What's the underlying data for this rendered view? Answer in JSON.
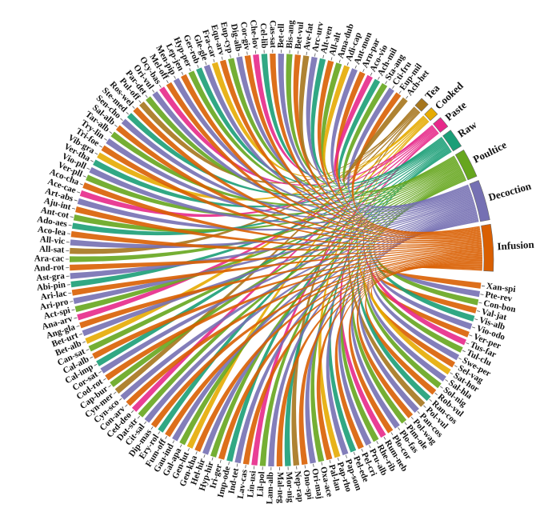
{
  "chart_data": {
    "type": "chord",
    "methods": [
      {
        "name": "Infusion",
        "color": "#d95f02"
      },
      {
        "name": "Decoction",
        "color": "#7570b3"
      },
      {
        "name": "Poultice",
        "color": "#66a61e"
      },
      {
        "name": "Raw",
        "color": "#1b9e77"
      },
      {
        "name": "Paste",
        "color": "#e7298a"
      },
      {
        "name": "Cooked",
        "color": "#e6ab02"
      },
      {
        "name": "Tea",
        "color": "#a6761d"
      }
    ],
    "species": [
      "Xan-spi",
      "Pte-rev",
      "Con-bon",
      "Val-jat",
      "Vis-alb",
      "Vio-odo",
      "Ver-per",
      "Tus-far",
      "Tul-clu",
      "Swe-per",
      "Sel-vag",
      "Sat-hor",
      "Sal-hla",
      "Sol-nig",
      "Rob-vul",
      "Ran-cos",
      "Pol-vul",
      "Pan-cos",
      "Pol-wag",
      "Pim-ole",
      "Plo-fas",
      "Plo-cor",
      "Rum-neb",
      "Rhe-rib",
      "Pru-alb",
      "Pel-cri",
      "Pel-ede",
      "Pap-som",
      "Pap-rho",
      "Pal-lan",
      "Oxa-ace",
      "Ori-maj",
      "Ono-spi",
      "Nep-rap",
      "Mor-nig",
      "Mal-neg",
      "Lam-alb",
      "Lil-pol",
      "Lin-usi",
      "Lav-cas",
      "Ind-tet",
      "Imp-ode",
      "Iri-ger",
      "Hyp-hir",
      "Hel-hir",
      "Gen-kha",
      "Gen-lut",
      "Gal-apa",
      "Gau-ind",
      "Fum-off",
      "Ery-rol",
      "Dip-mas",
      "Cit-sal",
      "Dat-str",
      "Ced-deo",
      "Con-arv",
      "Cyn-sco",
      "Cyn-mer",
      "Cap-bur",
      "Cod-rot",
      "Cor-sat",
      "Cal-imp",
      "Cal-alb",
      "Can-sat",
      "Bet-alb",
      "Bet-urt",
      "Ang-gla",
      "Ana-arv",
      "Act-spi",
      "Ari-pro",
      "Ari-lac",
      "Abi-pin",
      "Ast-gra",
      "And-rot",
      "Ara-cac",
      "All-sat",
      "All-vic",
      "Aco-lea",
      "Ado-aes",
      "Ant-cot",
      "Aju-int",
      "Art-abs",
      "Ace-cae",
      "Aco-cha",
      "Ver-pll",
      "Vio-pll",
      "Ver-tha",
      "Vib-gra",
      "Tri-foe",
      "Try-lin",
      "Tar-alb",
      "Sal-alb",
      "Sen-cho",
      "Ste-med",
      "Ros-wel",
      "Pul-off",
      "Par-det",
      "Ori-vul",
      "Ocy-bas",
      "Mel-off",
      "Men-pip",
      "Lep-jen",
      "Hyp-per",
      "Ger-rob",
      "Gle-gle",
      "Fra-car",
      "Equ-arv",
      "Eup-cyp",
      "Dig-alb",
      "Cor-giv",
      "Che-lov",
      "Cel-lib",
      "Cas-sat",
      "Bet-ell",
      "Bis-ang",
      "Bet-vul",
      "Ave-fat",
      "Arc-urv",
      "Alt-ven",
      "All-alt",
      "Ama-dub",
      "Adi-cap",
      "Ant-mon",
      "Arn-par",
      "Aco-vio",
      "Ach-mil",
      "Sta-ang",
      "Cti-fru",
      "Eup-mil",
      "Ach-het"
    ],
    "links": [
      0,
      1,
      2,
      0,
      3,
      1,
      0,
      4,
      2,
      1,
      0,
      5,
      1,
      2,
      0,
      3,
      6,
      1,
      0,
      2,
      1,
      0,
      4,
      2,
      1,
      0,
      3,
      1,
      5,
      0,
      2,
      1,
      0,
      6,
      3,
      0,
      1,
      2,
      4,
      0,
      1,
      3,
      0,
      2,
      1,
      0,
      5,
      2,
      1,
      0,
      3,
      0,
      1,
      2,
      4,
      0,
      1,
      6,
      2,
      0,
      1,
      3,
      0,
      2,
      5,
      1,
      0,
      4,
      2,
      1,
      0,
      3,
      1,
      0,
      2,
      6,
      1,
      0,
      3,
      2,
      0,
      1,
      4,
      0,
      2,
      1,
      3,
      5,
      0,
      1,
      2,
      0,
      1,
      3,
      0,
      6,
      2,
      1,
      4,
      0,
      1,
      0,
      2,
      3,
      1,
      5,
      0,
      2,
      1,
      0,
      4,
      3,
      0,
      1,
      2,
      0,
      6,
      1,
      3,
      0,
      2,
      5,
      1,
      0,
      4,
      3,
      2,
      1,
      0,
      6
    ]
  }
}
